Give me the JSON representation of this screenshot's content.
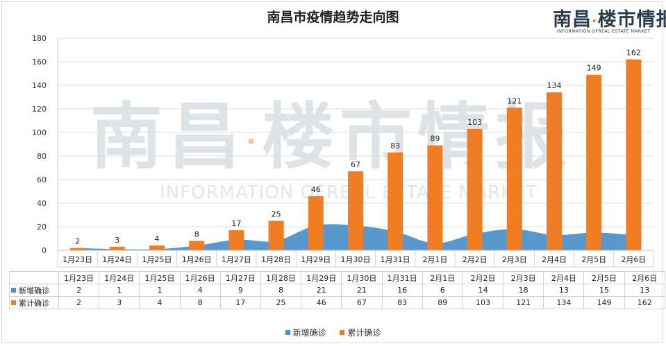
{
  "title": "南昌市疫情趋势走向图",
  "logo": {
    "cn_left": "南昌",
    "cn_dot": "·",
    "cn_right": "楼市情报",
    "en": "INFORMATION OFREAL ESTATE MARKET"
  },
  "watermark": {
    "cn_left": "南昌",
    "cn_dot": "·",
    "cn_right": "楼市情报",
    "en": "INFORMATION OFREAL ESTATE MARKET"
  },
  "colors": {
    "new": "#4a8fc9",
    "total": "#f07d23"
  },
  "chart_data": {
    "type": "bar",
    "title": "南昌市疫情趋势走向图",
    "xlabel": "",
    "ylabel": "",
    "ylim": [
      0,
      180
    ],
    "yticks": [
      0,
      20,
      40,
      60,
      80,
      100,
      120,
      140,
      160,
      180
    ],
    "grid": true,
    "legend_position": "bottom",
    "categories": [
      "1月23日",
      "1月24日",
      "1月25日",
      "1月26日",
      "1月27日",
      "1月28日",
      "1月29日",
      "1月30日",
      "1月31日",
      "2月1日",
      "2月2日",
      "2月3日",
      "2月4日",
      "2月5日",
      "2月6日"
    ],
    "series": [
      {
        "name": "新增确诊",
        "type": "area",
        "values": [
          2,
          1,
          1,
          4,
          9,
          8,
          21,
          21,
          16,
          6,
          14,
          18,
          13,
          15,
          13
        ]
      },
      {
        "name": "累计确诊",
        "type": "bar",
        "values": [
          2,
          3,
          4,
          8,
          17,
          25,
          46,
          67,
          83,
          89,
          103,
          121,
          134,
          149,
          162
        ]
      }
    ]
  }
}
